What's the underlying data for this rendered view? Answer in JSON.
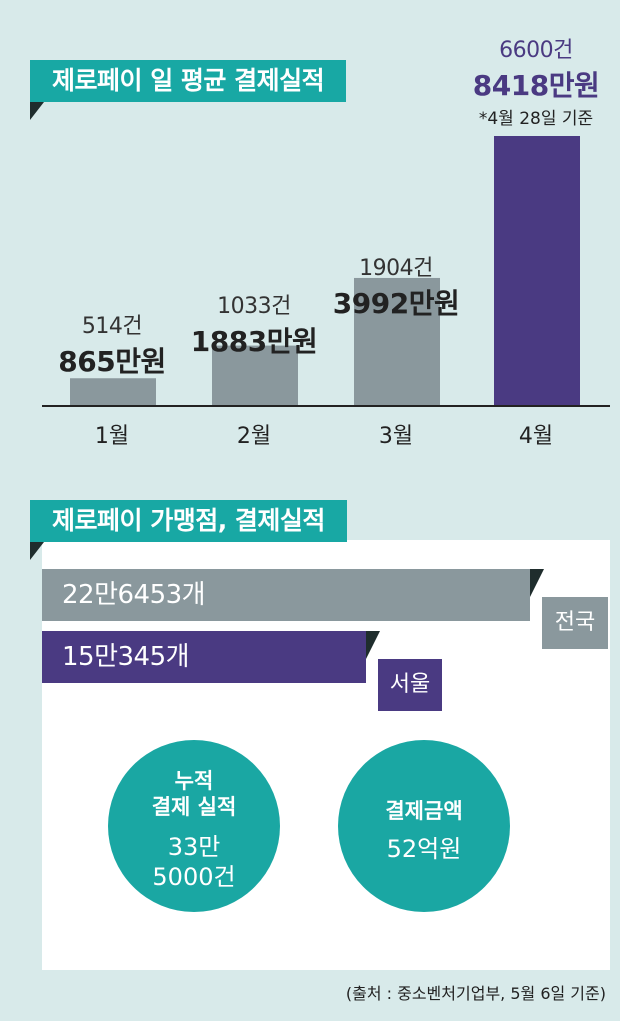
{
  "section1": {
    "title": "제로페이 일 평균 결제실적"
  },
  "section2": {
    "title": "제로페이 가맹점, 결제실적"
  },
  "chart_data": [
    {
      "type": "bar",
      "title": "제로페이 일 평균 결제실적",
      "categories": [
        "1월",
        "2월",
        "3월",
        "4월"
      ],
      "values": [
        865,
        1883,
        3992,
        8418
      ],
      "unit": "만원",
      "counts": [
        "514건",
        "1033건",
        "1904건",
        "6600건"
      ],
      "amount_labels": [
        "865만원",
        "1883만원",
        "3992만원",
        "8418만원"
      ],
      "note": "*4월 28일 기준",
      "ylim": [
        0,
        9000
      ],
      "colors": [
        "#8a989d",
        "#8a989d",
        "#8a989d",
        "#4a3a82"
      ]
    },
    {
      "type": "bar",
      "orientation": "horizontal",
      "title": "제로페이 가맹점, 결제실적",
      "categories": [
        "전국",
        "서울"
      ],
      "values": [
        226453,
        150345
      ],
      "value_labels": [
        "22만6453개",
        "15만345개"
      ],
      "colors": [
        "#8a989d",
        "#4a3a82"
      ]
    }
  ],
  "stats": [
    {
      "title_lines": [
        "누적",
        "결제 실적"
      ],
      "value_lines": [
        "33만",
        "5000건"
      ]
    },
    {
      "title_lines": [
        "결제금액"
      ],
      "value_lines": [
        "52억원"
      ]
    }
  ],
  "source": "(출처 : 중소벤처기업부, 5월 6일 기준)"
}
